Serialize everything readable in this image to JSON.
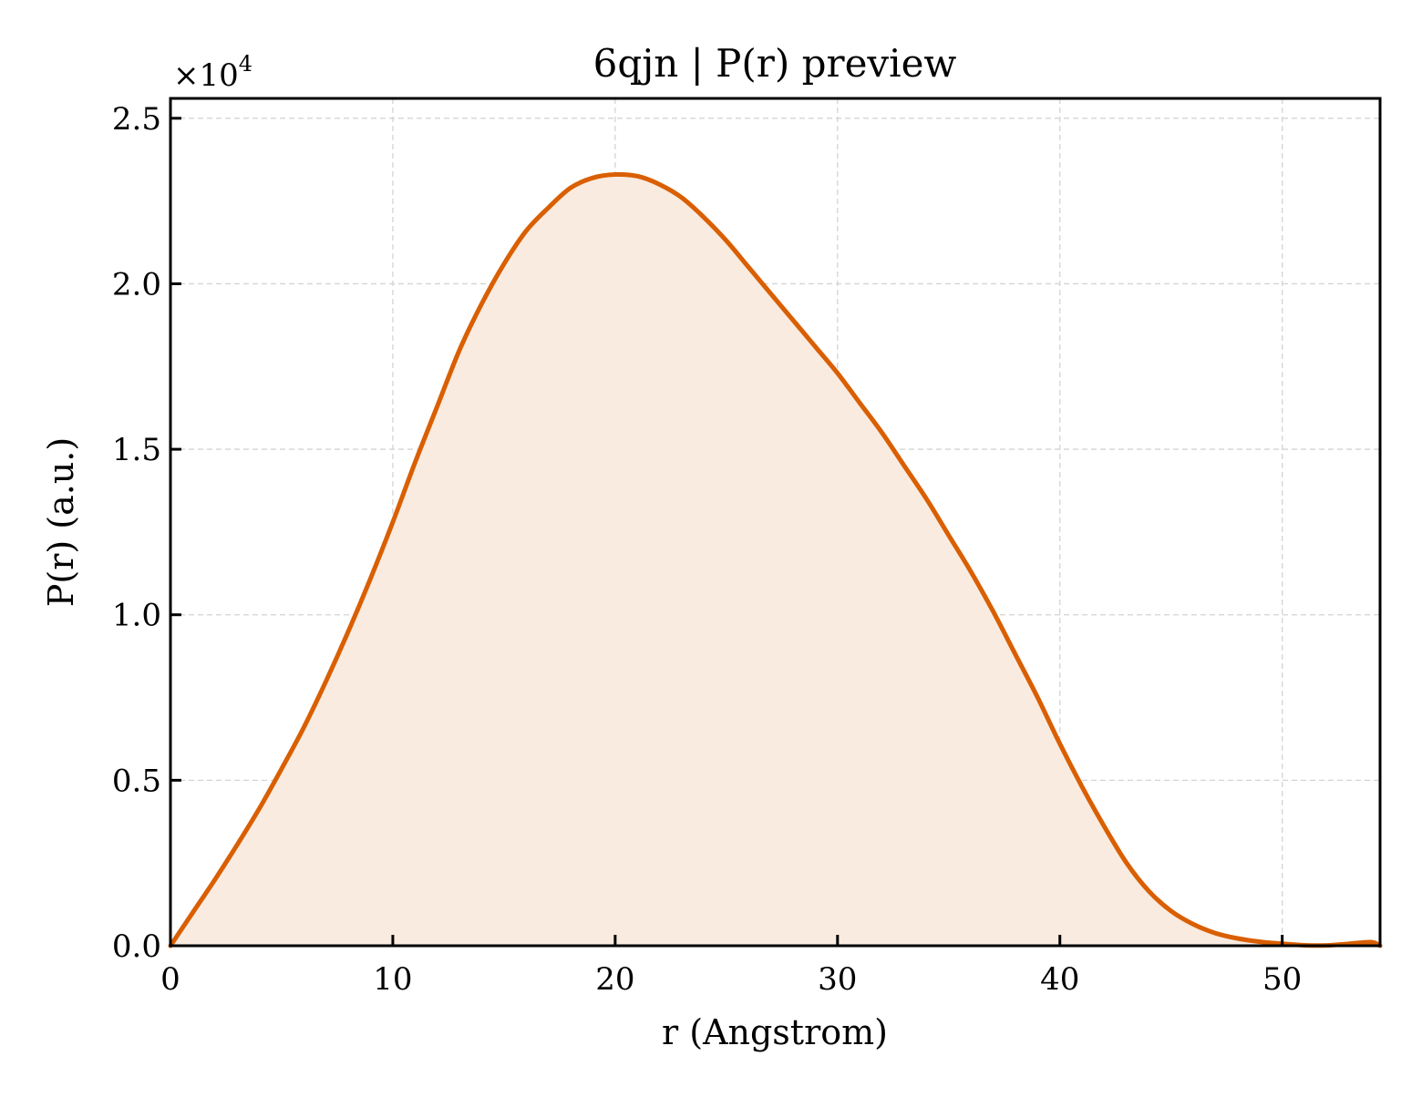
{
  "chart_data": {
    "type": "area",
    "title": "6qjn | P(r) preview",
    "xlabel": "r (Angstrom)",
    "ylabel": "P(r) (a.u.)",
    "y_scale_factor": "×10",
    "y_scale_exponent": "4",
    "xlim": [
      0,
      54.4
    ],
    "ylim": [
      0,
      25600
    ],
    "x_ticks": [
      0,
      10,
      20,
      30,
      40,
      50
    ],
    "x_tick_labels": [
      "0",
      "10",
      "20",
      "30",
      "40",
      "50"
    ],
    "y_ticks": [
      0,
      5000,
      10000,
      15000,
      20000,
      25000
    ],
    "y_tick_labels": [
      "0.0",
      "0.5",
      "1.0",
      "1.5",
      "2.0",
      "2.5"
    ],
    "grid": true,
    "line_color": "#d95f02",
    "fill_color": "#f9ebe0",
    "series": [
      {
        "x": [
          0,
          1,
          2,
          3,
          4,
          5,
          6,
          7,
          8,
          9,
          10,
          11,
          12,
          13,
          14,
          15,
          16,
          17,
          18,
          19,
          20,
          21,
          22,
          23,
          24,
          25,
          26,
          27,
          28,
          29,
          30,
          31,
          32,
          33,
          34,
          35,
          36,
          37,
          38,
          39,
          40,
          41,
          42,
          43,
          44,
          45,
          46,
          47,
          48,
          49,
          50,
          51,
          52,
          53,
          54,
          54.4
        ],
        "y": [
          0,
          1000,
          2000,
          3050,
          4150,
          5350,
          6600,
          8000,
          9500,
          11100,
          12800,
          14600,
          16300,
          18000,
          19400,
          20600,
          21600,
          22300,
          22900,
          23200,
          23300,
          23250,
          23000,
          22600,
          22000,
          21300,
          20500,
          19700,
          18900,
          18100,
          17300,
          16400,
          15500,
          14500,
          13500,
          12400,
          11300,
          10100,
          8800,
          7500,
          6100,
          4800,
          3600,
          2500,
          1650,
          1050,
          650,
          380,
          220,
          120,
          60,
          15,
          10,
          60,
          110,
          0
        ]
      }
    ]
  }
}
